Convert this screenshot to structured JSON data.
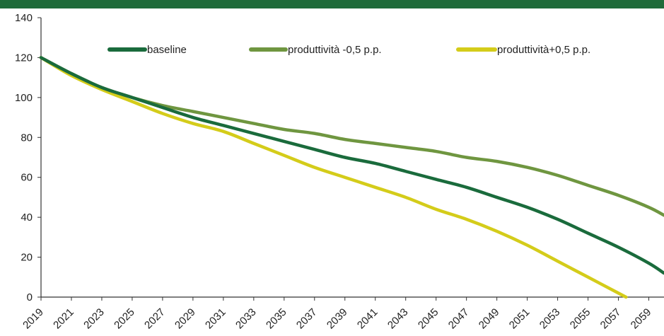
{
  "chart_data": {
    "type": "line",
    "title": "",
    "xlabel": "",
    "ylabel": "",
    "ylim": [
      0,
      140
    ],
    "yticks": [
      0,
      20,
      40,
      60,
      80,
      100,
      120,
      140
    ],
    "xlim": [
      2019,
      2060
    ],
    "x_tick_labels": [
      "2019",
      "2021",
      "2023",
      "2025",
      "2027",
      "2029",
      "2031",
      "2033",
      "2035",
      "2037",
      "2039",
      "2041",
      "2043",
      "2045",
      "2047",
      "2049",
      "2051",
      "2053",
      "2055",
      "2057",
      "2059"
    ],
    "grid": false,
    "legend_position": "top",
    "series": [
      {
        "name": "baseline",
        "color": "#1a6b3c",
        "x": [
          2019,
          2021,
          2023,
          2025,
          2027,
          2029,
          2031,
          2033,
          2035,
          2037,
          2039,
          2041,
          2043,
          2045,
          2047,
          2049,
          2051,
          2053,
          2055,
          2057,
          2059,
          2060
        ],
        "y": [
          120,
          112,
          105,
          100,
          95,
          90,
          86,
          82,
          78,
          74,
          70,
          67,
          63,
          59,
          55,
          50,
          45,
          39,
          32,
          25,
          17,
          12
        ]
      },
      {
        "name": "produttività -0,5 p.p.",
        "color": "#6f9640",
        "x": [
          2019,
          2021,
          2023,
          2025,
          2027,
          2029,
          2031,
          2033,
          2035,
          2037,
          2039,
          2041,
          2043,
          2045,
          2047,
          2049,
          2051,
          2053,
          2055,
          2057,
          2059,
          2060
        ],
        "y": [
          120,
          112,
          105,
          100,
          96,
          93,
          90,
          87,
          84,
          82,
          79,
          77,
          75,
          73,
          70,
          68,
          65,
          61,
          56,
          51,
          45,
          41
        ]
      },
      {
        "name": "produttività+0,5 p.p.",
        "color": "#d4cc1a",
        "x": [
          2019,
          2021,
          2023,
          2025,
          2027,
          2029,
          2031,
          2033,
          2035,
          2037,
          2039,
          2041,
          2043,
          2045,
          2047,
          2049,
          2051,
          2053,
          2055,
          2057,
          2057.5
        ],
        "y": [
          120,
          111,
          104,
          98,
          92,
          87,
          83,
          77,
          71,
          65,
          60,
          55,
          50,
          44,
          39,
          33,
          26,
          18,
          10,
          2,
          0
        ]
      }
    ]
  }
}
